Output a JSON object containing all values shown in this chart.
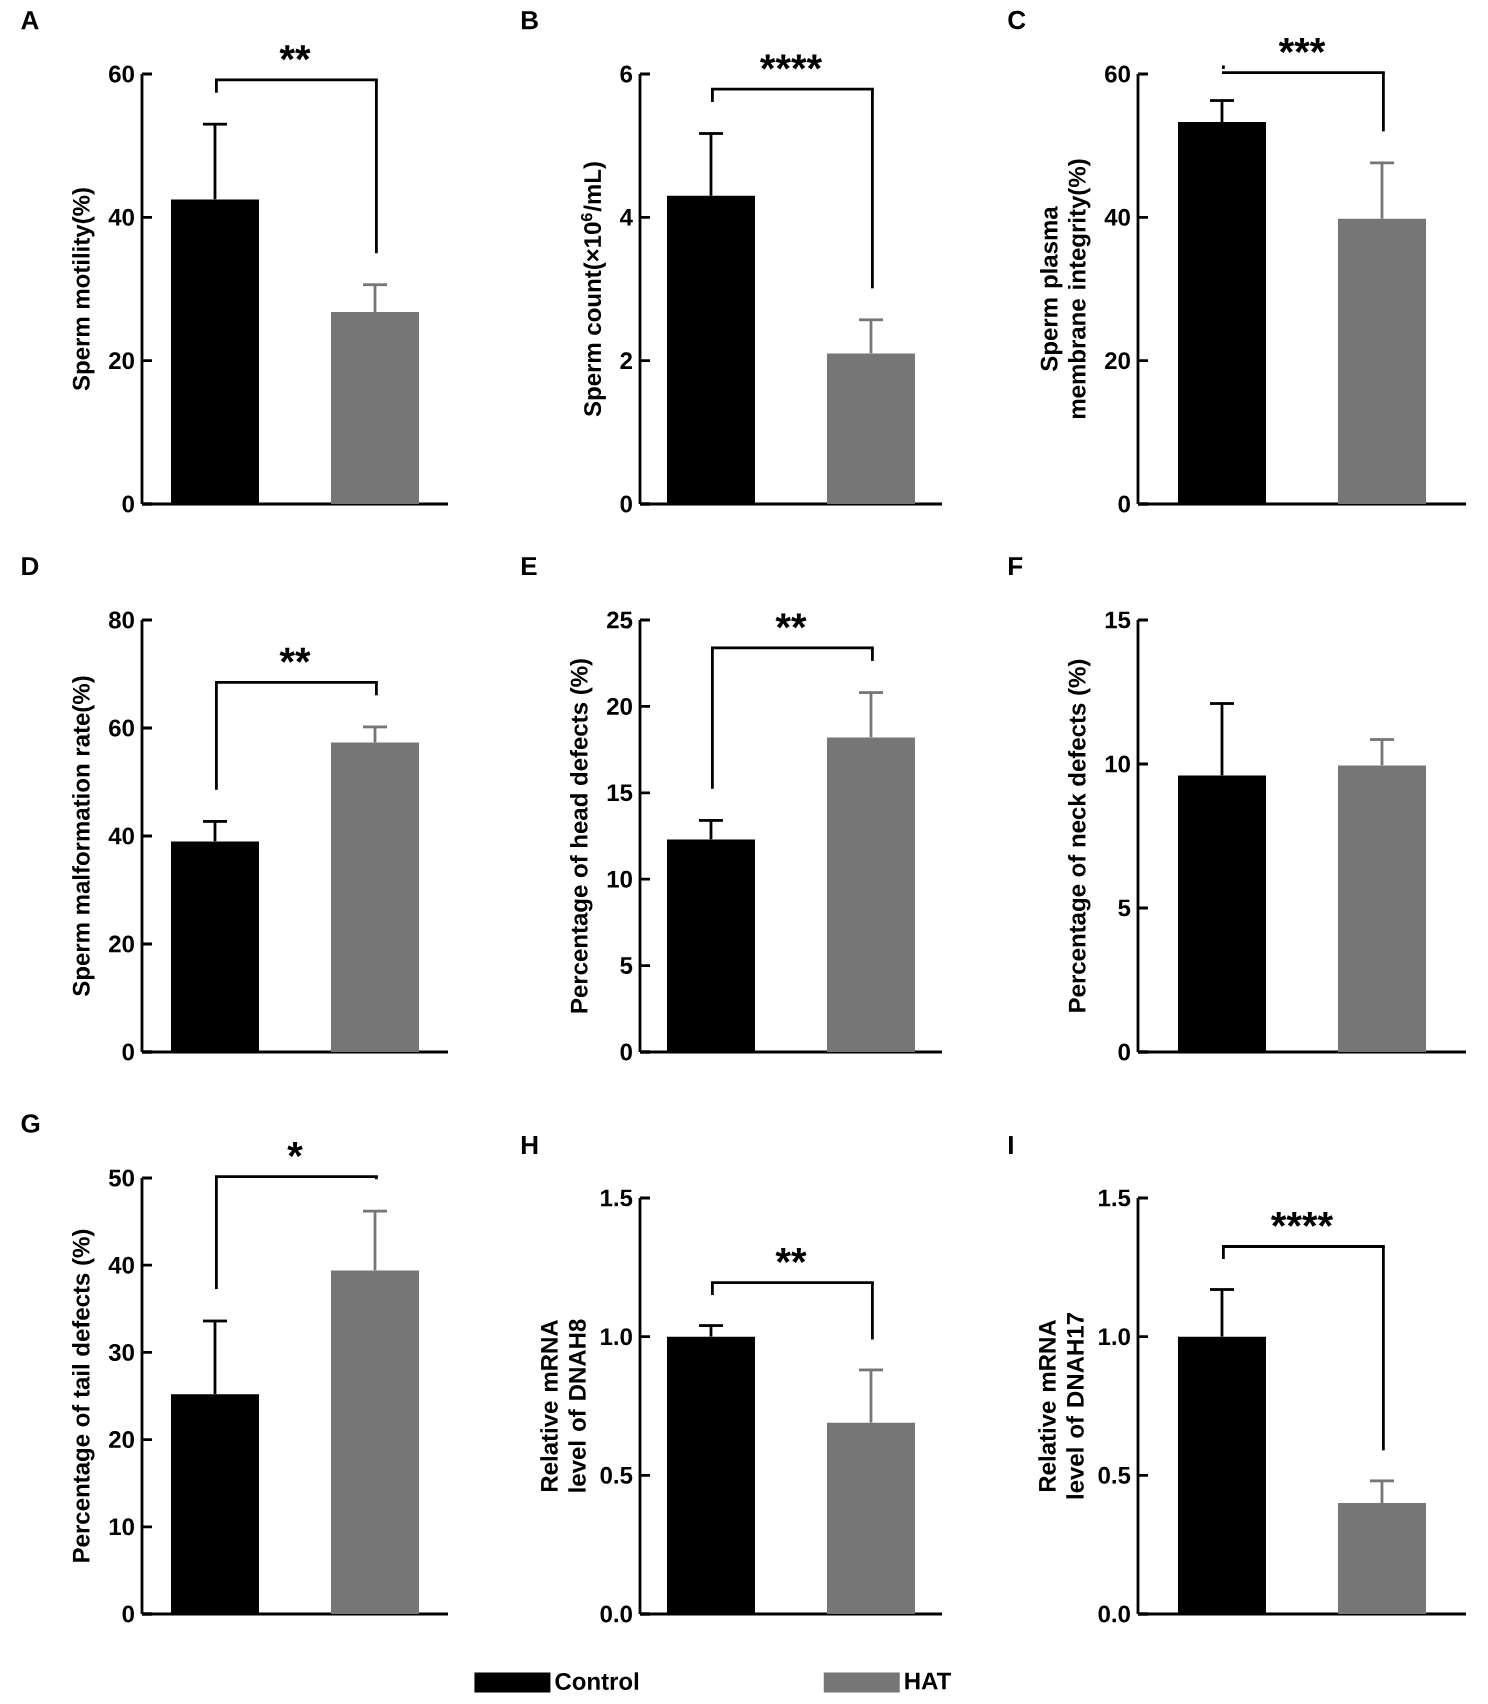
{
  "chart_data": [
    {
      "type": "bar",
      "title": "A",
      "ylabel": "Sperm motility(%)",
      "categories": [
        null
      ],
      "ylim": [
        0,
        60
      ],
      "yticks": [
        0,
        20,
        40,
        60
      ],
      "annotations": [
        "**"
      ],
      "series": [
        {
          "color": "#000000",
          "values": [
            42.5
          ],
          "errors": [
            10.5
          ]
        },
        {
          "color": "#767676",
          "values": [
            26.8
          ],
          "errors": [
            3.8
          ]
        }
      ]
    },
    {
      "type": "bar",
      "title": "B",
      "ylabel": "Sperm count(×10$^{6}$/mL)",
      "categories": [
        null
      ],
      "ylim": [
        0,
        6
      ],
      "yticks": [
        0,
        2,
        4,
        6
      ],
      "annotations": [
        "****"
      ],
      "series": [
        {
          "color": "#000000",
          "values": [
            4.3
          ],
          "errors": [
            0.87
          ]
        },
        {
          "color": "#767676",
          "values": [
            2.1
          ],
          "errors": [
            0.47
          ]
        }
      ]
    },
    {
      "type": "bar",
      "title": "C",
      "ylabel": "Sperm plasma membrane integrity(%)",
      "categories": [
        null
      ],
      "ylim": [
        0,
        60
      ],
      "yticks": [
        0,
        20,
        40,
        60
      ],
      "annotations": [
        "***"
      ],
      "series": [
        {
          "color": "#000000",
          "values": [
            53.3
          ],
          "errors": [
            3.0
          ]
        },
        {
          "color": "#767676",
          "values": [
            39.8
          ],
          "errors": [
            7.8
          ]
        }
      ]
    },
    {
      "type": "bar",
      "title": "D",
      "ylabel": "Sperm malformation rate(%)",
      "categories": [
        null
      ],
      "ylim": [
        0,
        80
      ],
      "yticks": [
        0,
        20,
        40,
        60,
        80
      ],
      "annotations": [
        "**"
      ],
      "series": [
        {
          "color": "#000000",
          "values": [
            39.0
          ],
          "errors": [
            3.7
          ]
        },
        {
          "color": "#767676",
          "values": [
            57.3
          ],
          "errors": [
            2.9
          ]
        }
      ]
    },
    {
      "type": "bar",
      "title": "E",
      "ylabel": "Percentage of head defects (%)",
      "categories": [
        null
      ],
      "ylim": [
        0,
        25
      ],
      "yticks": [
        0,
        5,
        10,
        15,
        20,
        25
      ],
      "annotations": [
        "**"
      ],
      "series": [
        {
          "color": "#000000",
          "values": [
            12.3
          ],
          "errors": [
            1.1
          ]
        },
        {
          "color": "#767676",
          "values": [
            18.2
          ],
          "errors": [
            2.6
          ]
        }
      ]
    },
    {
      "type": "bar",
      "title": "F",
      "ylabel": "Percentage of neck defects (%)",
      "categories": [
        null
      ],
      "ylim": [
        0,
        15
      ],
      "yticks": [
        0,
        5,
        10,
        15
      ],
      "series": [
        {
          "color": "#000000",
          "values": [
            9.6
          ],
          "errors": [
            2.5
          ]
        },
        {
          "color": "#767676",
          "values": [
            9.95
          ],
          "errors": [
            0.9
          ]
        }
      ]
    },
    {
      "type": "bar",
      "title": "G",
      "ylabel": "Percentage of tail defects (%)",
      "categories": [
        null
      ],
      "ylim": [
        0,
        50
      ],
      "yticks": [
        0,
        10,
        20,
        30,
        40,
        50
      ],
      "annotations": [
        "*"
      ],
      "series": [
        {
          "color": "#000000",
          "values": [
            25.2
          ],
          "errors": [
            8.4
          ]
        },
        {
          "color": "#767676",
          "values": [
            39.4
          ],
          "errors": [
            6.8
          ]
        }
      ]
    },
    {
      "type": "bar",
      "title": "H",
      "ylabel": "Relative mRNA level of DNAH8",
      "categories": [
        null
      ],
      "ylim": [
        0,
        1.5
      ],
      "yticks": [
        {
          "value": 0,
          "label": "0.0"
        },
        {
          "value": 0.5,
          "label": "0.5"
        },
        {
          "value": 1,
          "label": "1.0"
        },
        {
          "value": 1.5,
          "label": "1.5"
        }
      ],
      "annotations": [
        "**"
      ],
      "series": [
        {
          "color": "#000000",
          "values": [
            1.0
          ],
          "errors": [
            0.04
          ]
        },
        {
          "color": "#767676",
          "values": [
            0.69
          ],
          "errors": [
            0.19
          ]
        }
      ]
    },
    {
      "type": "bar",
      "title": "I",
      "ylabel": "Relative mRNA level of DNAH17",
      "categories": [
        null
      ],
      "ylim": [
        0,
        1.5
      ],
      "yticks": [
        {
          "value": 0,
          "label": "0.0"
        },
        {
          "value": 0.5,
          "label": "0.5"
        },
        {
          "value": 1,
          "label": "1.0"
        },
        {
          "value": 1.5,
          "label": "1.5"
        }
      ],
      "annotations": [
        "****"
      ],
      "legend": "bottom",
      "series": [
        {
          "name": "Control",
          "color": "#000000",
          "values": [
            1.0
          ],
          "errors": [
            0.17
          ]
        },
        {
          "name": "HAT",
          "color": "#767676",
          "values": [
            0.4
          ],
          "errors": [
            0.08
          ]
        }
      ]
    }
  ]
}
